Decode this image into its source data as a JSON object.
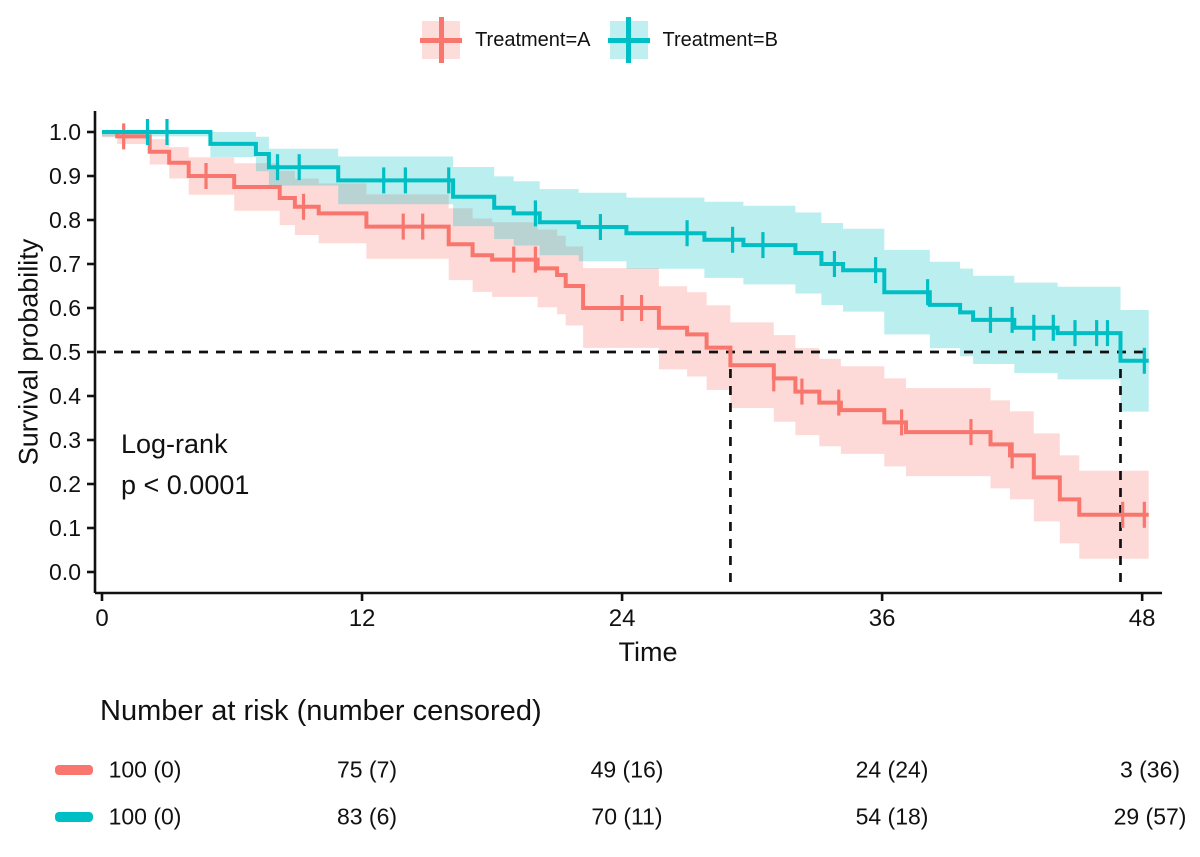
{
  "legend": {
    "items": [
      {
        "label": "Treatment=A",
        "color": "#F8766D"
      },
      {
        "label": "Treatment=B",
        "color": "#00BFC4"
      }
    ]
  },
  "axes": {
    "y_label": "Survival probability",
    "x_label": "Time"
  },
  "annotation": {
    "line1": "Log-rank",
    "line2": "p < 0.0001"
  },
  "chart_data": {
    "type": "line",
    "subtype": "kaplan-meier-step-with-confidence-bands",
    "title": "",
    "xlabel": "Time",
    "ylabel": "Survival probability",
    "xlim": [
      0,
      48
    ],
    "ylim": [
      0.0,
      1.0
    ],
    "x_ticks": [
      0,
      12,
      24,
      36,
      48
    ],
    "y_ticks": [
      1.0,
      0.9,
      0.8,
      0.7,
      0.6,
      0.5,
      0.4,
      0.3,
      0.2,
      0.1,
      0.0
    ],
    "grid": false,
    "legend_position": "top",
    "reference_lines": {
      "survival_probability": 0.5,
      "median_time_A": 29,
      "median_time_B": 47
    },
    "series": [
      {
        "name": "Treatment=A",
        "color": "#F8766D",
        "band_alpha": 0.27,
        "end_time": 48.3,
        "steps": [
          [
            0,
            1.0
          ],
          [
            0.7,
            0.99
          ],
          [
            2.2,
            0.955
          ],
          [
            3.1,
            0.93
          ],
          [
            4,
            0.9
          ],
          [
            6.1,
            0.875
          ],
          [
            8.2,
            0.85
          ],
          [
            8.9,
            0.83
          ],
          [
            10,
            0.815
          ],
          [
            12.2,
            0.785
          ],
          [
            16,
            0.745
          ],
          [
            17.1,
            0.72
          ],
          [
            18,
            0.71
          ],
          [
            20.1,
            0.69
          ],
          [
            21,
            0.675
          ],
          [
            21.4,
            0.65
          ],
          [
            22.2,
            0.6
          ],
          [
            25.7,
            0.555
          ],
          [
            27,
            0.54
          ],
          [
            27.9,
            0.51
          ],
          [
            29,
            0.47
          ],
          [
            31,
            0.44
          ],
          [
            32,
            0.41
          ],
          [
            33.1,
            0.385
          ],
          [
            34.1,
            0.368
          ],
          [
            36.1,
            0.34
          ],
          [
            37.1,
            0.318
          ],
          [
            41,
            0.29
          ],
          [
            41.9,
            0.265
          ],
          [
            43,
            0.215
          ],
          [
            44.2,
            0.165
          ],
          [
            45.1,
            0.13
          ]
        ],
        "censor_times": [
          1.0,
          4.8,
          9.3,
          13.9,
          14.8,
          19.0,
          20.0,
          24.0,
          24.9,
          31.0,
          32.3,
          34.0,
          36.9,
          40.1,
          42.0,
          47.1,
          48.1
        ],
        "band_halfwidth": {
          "t": [
            0,
            3,
            5,
            10,
            15,
            20,
            25,
            30,
            35,
            40,
            44,
            48.3
          ],
          "d": [
            0.012,
            0.035,
            0.05,
            0.068,
            0.08,
            0.088,
            0.094,
            0.098,
            0.1,
            0.1,
            0.1,
            0.1
          ]
        }
      },
      {
        "name": "Treatment=B",
        "color": "#00BFC4",
        "band_alpha": 0.27,
        "end_time": 48.3,
        "steps": [
          [
            0,
            1.0
          ],
          [
            5,
            0.973
          ],
          [
            7.1,
            0.95
          ],
          [
            7.7,
            0.92
          ],
          [
            10.9,
            0.89
          ],
          [
            16.2,
            0.853
          ],
          [
            18.1,
            0.828
          ],
          [
            19,
            0.815
          ],
          [
            20.2,
            0.795
          ],
          [
            22,
            0.784
          ],
          [
            24.2,
            0.77
          ],
          [
            27.8,
            0.755
          ],
          [
            29.6,
            0.743
          ],
          [
            32,
            0.725
          ],
          [
            33.2,
            0.7
          ],
          [
            34.2,
            0.686
          ],
          [
            36.1,
            0.636
          ],
          [
            38.2,
            0.607
          ],
          [
            39.6,
            0.59
          ],
          [
            40.2,
            0.573
          ],
          [
            42.1,
            0.555
          ],
          [
            44.1,
            0.543
          ],
          [
            47.0,
            0.48
          ]
        ],
        "censor_times": [
          2.1,
          3.0,
          8.1,
          9.1,
          13.0,
          14.0,
          16.0,
          20.0,
          23.0,
          27.0,
          29.1,
          30.5,
          33.8,
          35.7,
          38.1,
          41.0,
          42.0,
          43.0,
          43.9,
          44.9,
          45.9,
          46.4,
          48.1
        ],
        "band_halfwidth": {
          "t": [
            0,
            3,
            5,
            10,
            15,
            20,
            25,
            30,
            35,
            40,
            44,
            48.3
          ],
          "d": [
            0.01,
            0.022,
            0.03,
            0.052,
            0.065,
            0.075,
            0.082,
            0.09,
            0.095,
            0.1,
            0.105,
            0.12
          ]
        }
      }
    ],
    "annotations": [
      "Log-rank",
      "p < 0.0001"
    ]
  },
  "risk_table": {
    "title": "Number at risk (number censored)",
    "rows": [
      {
        "series": "Treatment=A",
        "color": "#F8766D",
        "values": [
          "100 (0)",
          "75 (7)",
          "49 (16)",
          "24 (24)",
          "3 (36)"
        ]
      },
      {
        "series": "Treatment=B",
        "color": "#00BFC4",
        "values": [
          "100 (0)",
          "83 (6)",
          "70 (11)",
          "54 (18)",
          "29 (57)"
        ]
      }
    ]
  }
}
